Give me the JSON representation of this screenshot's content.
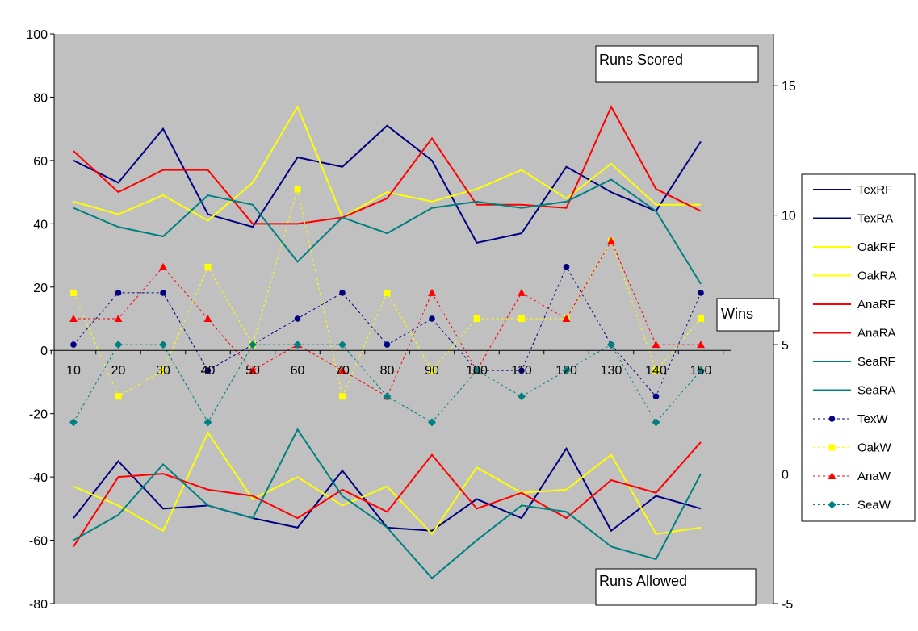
{
  "chart_data": {
    "type": "line",
    "x": [
      10,
      20,
      30,
      40,
      50,
      60,
      70,
      80,
      90,
      100,
      110,
      120,
      130,
      140,
      150
    ],
    "left_axis": {
      "ylim": [
        -80,
        100
      ],
      "ticks": [
        "100",
        "80",
        "60",
        "40",
        "20",
        "0",
        "-20",
        "-40",
        "-60",
        "-80"
      ]
    },
    "right_axis": {
      "ylim": [
        -5,
        17
      ],
      "ticks": [
        "15",
        "10",
        "5",
        "0",
        "-5"
      ]
    },
    "x_tick_labels": [
      "10",
      "20",
      "30",
      "40",
      "50",
      "60",
      "70",
      "80",
      "90",
      "100",
      "110",
      "120",
      "130",
      "140",
      "150"
    ],
    "annotations": {
      "top": "Runs Scored",
      "middle": "Wins",
      "bottom": "Runs Allowed"
    },
    "legend_position": "right",
    "grid": false,
    "plot_background": "#c0c0c0",
    "series": [
      {
        "name": "TexRF",
        "axis": "left",
        "style": "solid",
        "color": "#000080",
        "values": [
          60,
          53,
          70,
          43,
          39,
          61,
          58,
          71,
          60,
          34,
          37,
          58,
          50,
          44,
          66
        ]
      },
      {
        "name": "TexRA",
        "axis": "left",
        "style": "solid",
        "color": "#000080",
        "values": [
          -53,
          -35,
          -50,
          -49,
          -53,
          -56,
          -38,
          -56,
          -57,
          -47,
          -53,
          -31,
          -57,
          -46,
          -50
        ]
      },
      {
        "name": "OakRF",
        "axis": "left",
        "style": "solid",
        "color": "#ffff00",
        "values": [
          47,
          43,
          49,
          41,
          53,
          77,
          42,
          50,
          47,
          51,
          57,
          48,
          59,
          46,
          46
        ]
      },
      {
        "name": "OakRA",
        "axis": "left",
        "style": "solid",
        "color": "#ffff00",
        "values": [
          -43,
          -49,
          -57,
          -26,
          -47,
          -40,
          -49,
          -43,
          -58,
          -37,
          -45,
          -44,
          -33,
          -58,
          -56
        ]
      },
      {
        "name": "AnaRF",
        "axis": "left",
        "style": "solid",
        "color": "#ff0000",
        "values": [
          63,
          50,
          57,
          57,
          40,
          40,
          42,
          48,
          67,
          46,
          46,
          45,
          77,
          51,
          44
        ]
      },
      {
        "name": "AnaRA",
        "axis": "left",
        "style": "solid",
        "color": "#ff0000",
        "values": [
          -62,
          -40,
          -39,
          -44,
          -46,
          -53,
          -44,
          -51,
          -33,
          -50,
          -45,
          -53,
          -41,
          -45,
          -29
        ]
      },
      {
        "name": "SeaRF",
        "axis": "left",
        "style": "solid",
        "color": "#008080",
        "values": [
          45,
          39,
          36,
          49,
          46,
          28,
          42,
          37,
          45,
          47,
          45,
          47,
          54,
          44,
          21
        ]
      },
      {
        "name": "SeaRA",
        "axis": "left",
        "style": "solid",
        "color": "#008080",
        "values": [
          -60,
          -52,
          -36,
          -49,
          -53,
          -25,
          -46,
          -56,
          -72,
          -60,
          -49,
          -51,
          -62,
          -66,
          -39
        ]
      },
      {
        "name": "TexW",
        "axis": "right",
        "style": "dashed",
        "marker": "circle",
        "color": "#000080",
        "values": [
          5,
          7,
          7,
          4,
          5,
          6,
          7,
          5,
          6,
          4,
          4,
          8,
          5,
          3,
          7
        ]
      },
      {
        "name": "OakW",
        "axis": "right",
        "style": "dashed",
        "marker": "square",
        "color": "#ffff00",
        "values": [
          7,
          3,
          4,
          8,
          5,
          11,
          3,
          7,
          4,
          6,
          6,
          6,
          9,
          4,
          6
        ]
      },
      {
        "name": "AnaW",
        "axis": "right",
        "style": "dashed",
        "marker": "triangle",
        "color": "#ff0000",
        "values": [
          6,
          6,
          8,
          6,
          4,
          5,
          4,
          3,
          7,
          4,
          7,
          6,
          9,
          5,
          5
        ]
      },
      {
        "name": "SeaW",
        "axis": "right",
        "style": "dashed",
        "marker": "diamond",
        "color": "#008080",
        "values": [
          2,
          5,
          5,
          2,
          5,
          5,
          5,
          3,
          2,
          4,
          3,
          4,
          5,
          2,
          4
        ]
      }
    ]
  }
}
